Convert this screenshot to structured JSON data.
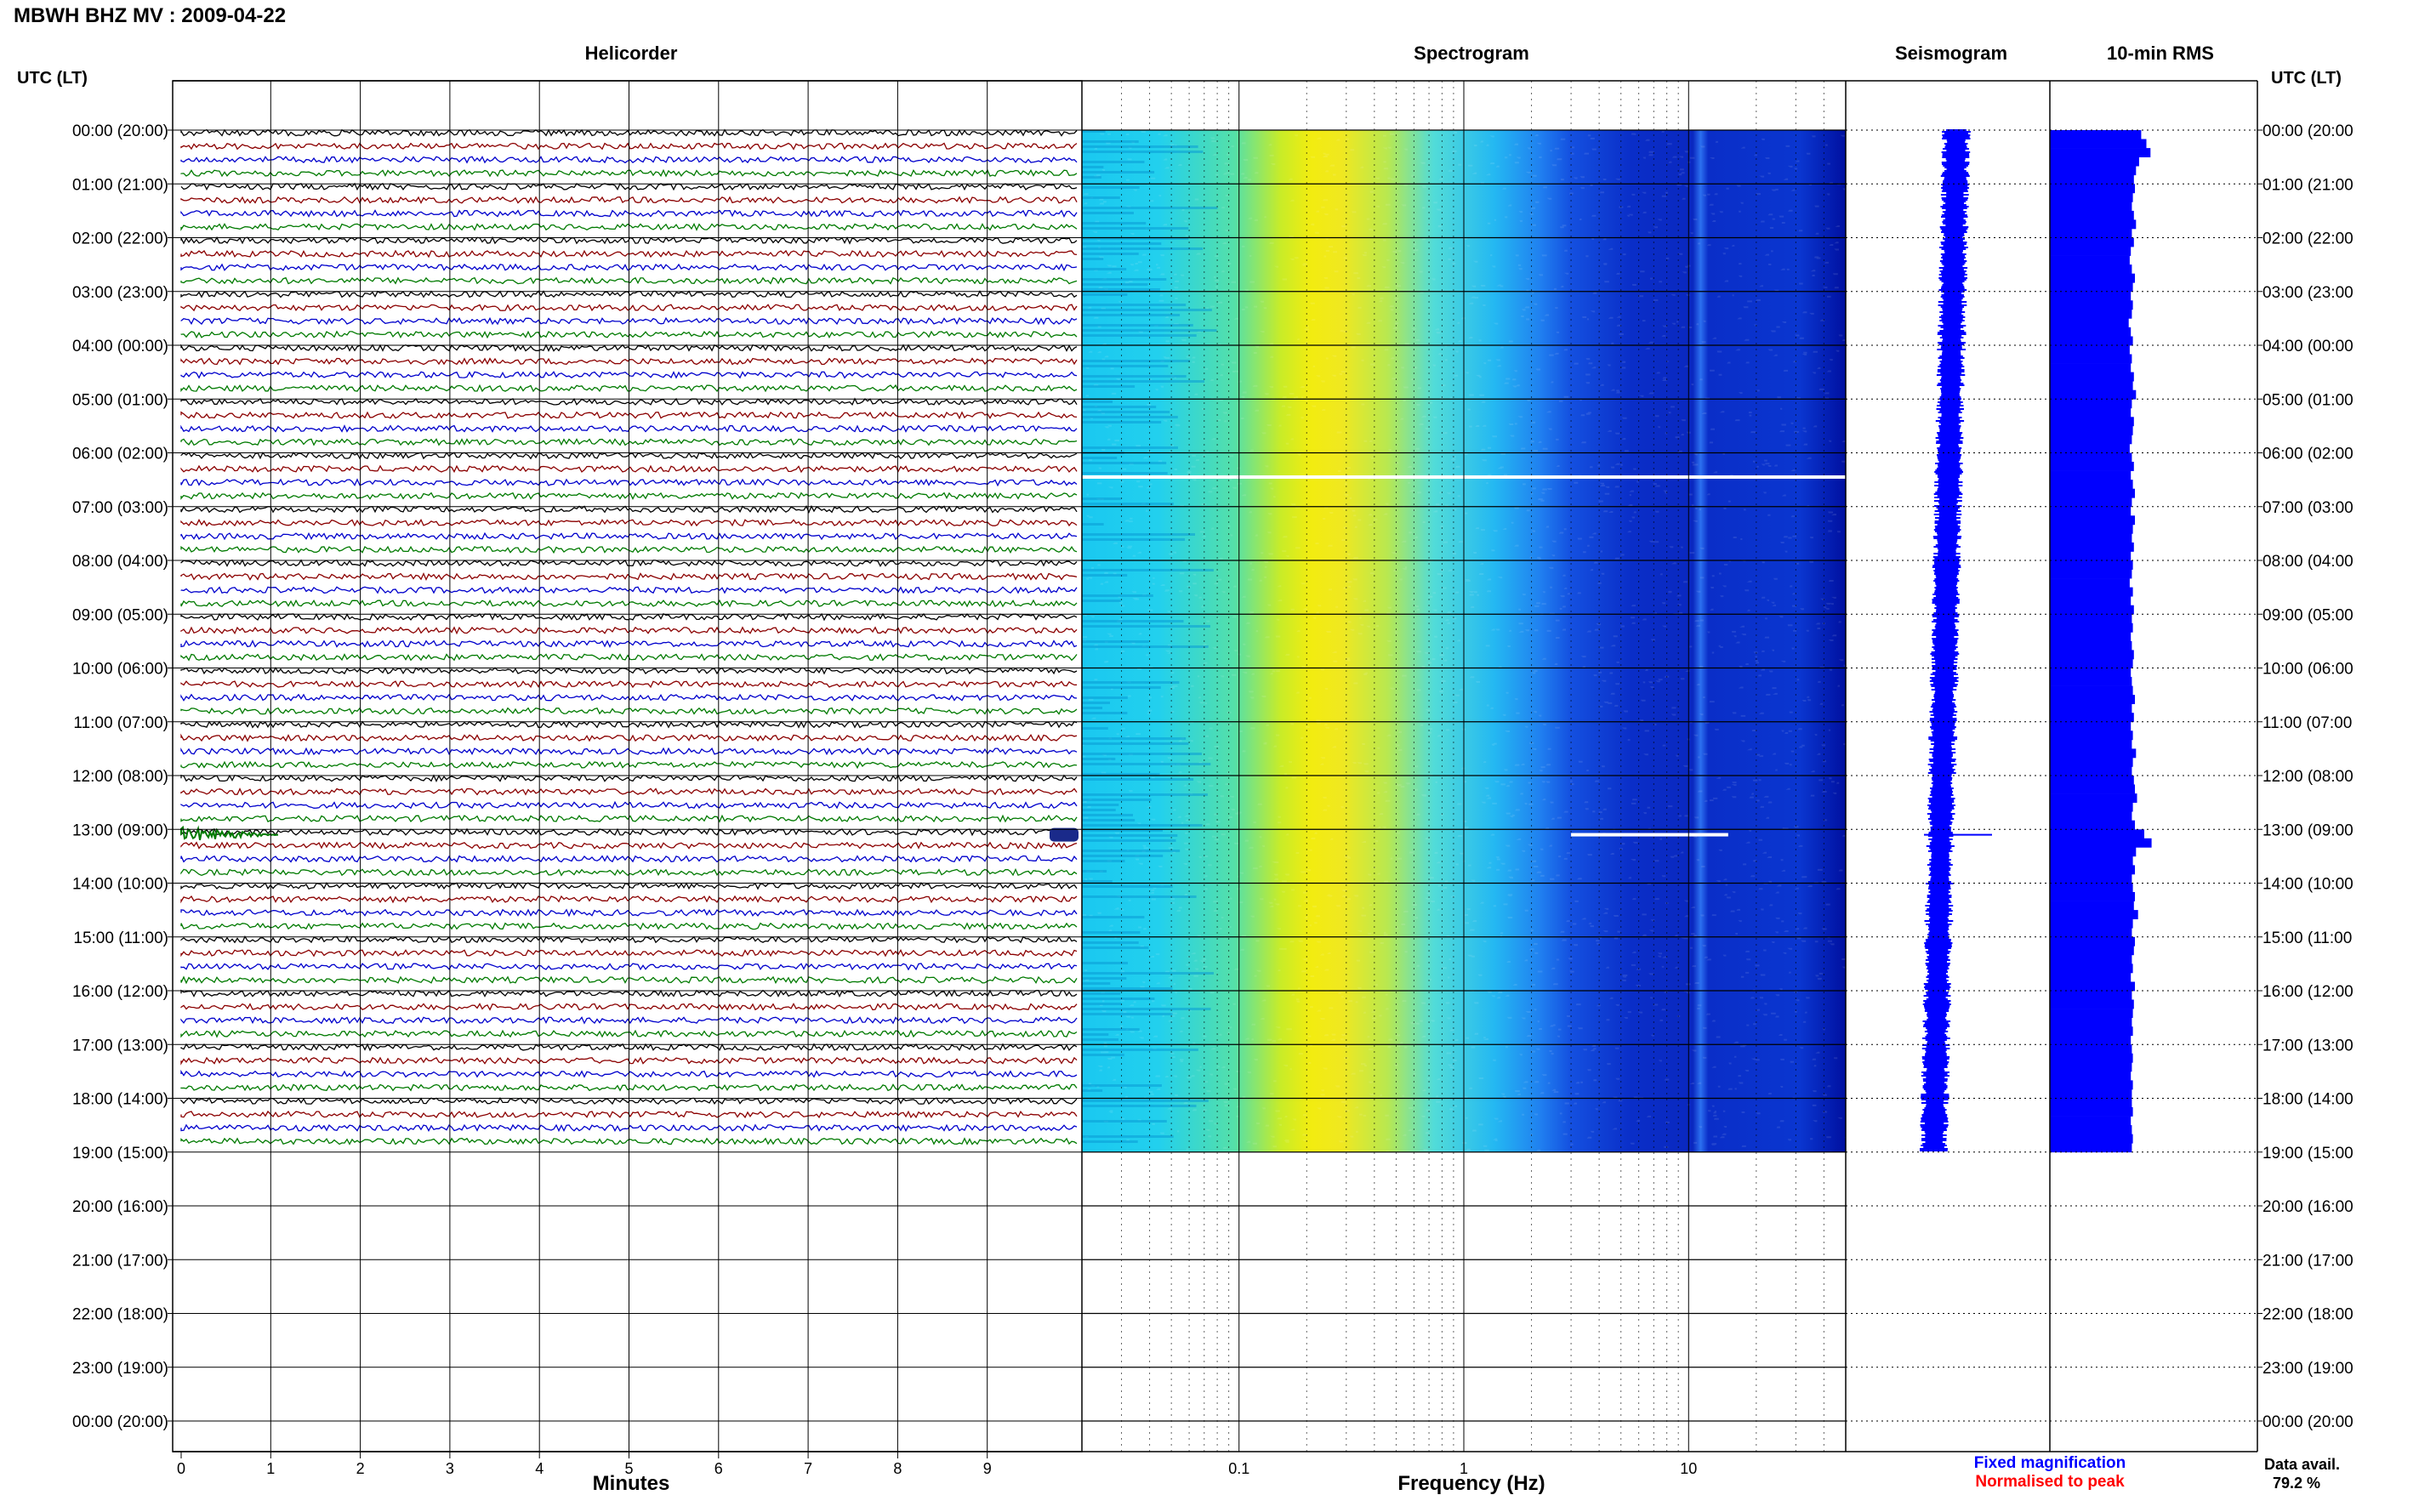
{
  "header": {
    "station_label": "MBWH BHZ MV : 2009-04-22",
    "left_axis_title": "UTC (LT)",
    "right_axis_title": "UTC (LT)"
  },
  "panels": {
    "helicorder_title": "Helicorder",
    "spectrogram_title": "Spectrogram",
    "seismogram_title": "Seismogram",
    "rms_title": "10-min RMS"
  },
  "chart_data": {
    "type": "line",
    "hour_labels": [
      "00:00 (20:00)",
      "01:00 (21:00)",
      "02:00 (22:00)",
      "03:00 (23:00)",
      "04:00 (00:00)",
      "05:00 (01:00)",
      "06:00 (02:00)",
      "07:00 (03:00)",
      "08:00 (04:00)",
      "09:00 (05:00)",
      "10:00 (06:00)",
      "11:00 (07:00)",
      "12:00 (08:00)",
      "13:00 (09:00)",
      "14:00 (10:00)",
      "15:00 (11:00)",
      "16:00 (12:00)",
      "17:00 (13:00)",
      "18:00 (14:00)",
      "19:00 (15:00)",
      "20:00 (16:00)",
      "21:00 (17:00)",
      "22:00 (18:00)",
      "23:00 (19:00)",
      "00:00 (20:00)"
    ],
    "data_end_hour": 19,
    "helicorder": {
      "x_ticks": [
        "0",
        "1",
        "2",
        "3",
        "4",
        "5",
        "6",
        "7",
        "8",
        "9"
      ],
      "xlabel": "Minutes",
      "xlim": [
        0,
        10
      ],
      "line_colors": [
        "#000000",
        "#8b0000",
        "#0000cc",
        "#007a00"
      ],
      "event_hour": 13.1,
      "event_start_minute": 0,
      "event_end_minute": 1.1
    },
    "spectrogram": {
      "xlabel": "Frequency (Hz)",
      "x_tick_labels": [
        "0.1",
        "1",
        "10"
      ],
      "xlim": [
        0.02,
        50
      ],
      "gaps": [
        {
          "hour": 6.45,
          "f_from": 0.02,
          "f_to": 50
        },
        {
          "hour": 13.1,
          "f_from": 3,
          "f_to": 15
        }
      ]
    },
    "seismogram": {
      "legend": [
        {
          "label": "Fixed magnification",
          "color": "#0000ff"
        },
        {
          "label": "Normalised to peak",
          "color": "#ff0000"
        }
      ],
      "event_hour": 13.1
    },
    "rms": {
      "interval_minutes": 10,
      "relative_values": [
        0.88,
        0.93,
        0.97,
        0.86,
        0.83,
        0.81,
        0.82,
        0.8,
        0.79,
        0.81,
        0.83,
        0.79,
        0.81,
        0.78,
        0.77,
        0.79,
        0.82,
        0.8,
        0.78,
        0.8,
        0.79,
        0.76,
        0.78,
        0.8,
        0.77,
        0.79,
        0.78,
        0.81,
        0.8,
        0.83,
        0.79,
        0.78,
        0.81,
        0.8,
        0.79,
        0.77,
        0.79,
        0.81,
        0.78,
        0.8,
        0.82,
        0.79,
        0.78,
        0.82,
        0.8,
        0.79,
        0.81,
        0.78,
        0.8,
        0.79,
        0.77,
        0.8,
        0.78,
        0.81,
        0.79,
        0.8,
        0.78,
        0.79,
        0.81,
        0.8,
        0.78,
        0.79,
        0.8,
        0.82,
        0.79,
        0.81,
        0.78,
        0.8,
        0.79,
        0.83,
        0.8,
        0.79,
        0.81,
        0.82,
        0.84,
        0.8,
        0.79,
        0.82,
        0.91,
        0.98,
        0.83,
        0.8,
        0.82,
        0.79,
        0.8,
        0.82,
        0.81,
        0.85,
        0.8,
        0.79,
        0.82,
        0.81,
        0.79,
        0.8,
        0.78,
        0.82,
        0.79,
        0.81,
        0.8,
        0.79,
        0.8,
        0.78,
        0.79,
        0.8,
        0.79,
        0.78,
        0.8,
        0.79,
        0.79,
        0.8,
        0.78,
        0.79,
        0.8,
        0.79
      ]
    }
  },
  "footer": {
    "data_avail_label": "Data avail.",
    "data_avail_value": "79.2 %"
  },
  "colors": {
    "spectrogram_low": "#00e5ff",
    "spectrogram_mid": "#f5f000",
    "spectrogram_high": "#001a99",
    "rms_bar": "#0000ff"
  }
}
